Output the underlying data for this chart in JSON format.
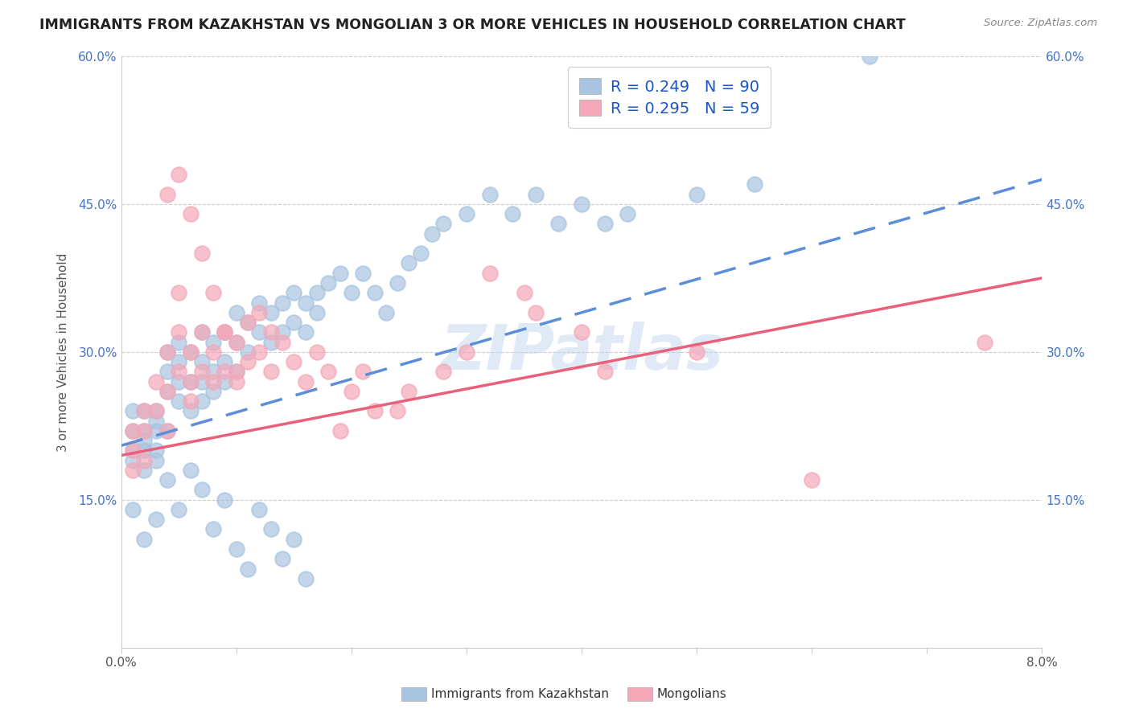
{
  "title": "IMMIGRANTS FROM KAZAKHSTAN VS MONGOLIAN 3 OR MORE VEHICLES IN HOUSEHOLD CORRELATION CHART",
  "source": "Source: ZipAtlas.com",
  "legend_label1": "Immigrants from Kazakhstan",
  "legend_label2": "Mongolians",
  "r1": 0.249,
  "n1": 90,
  "r2": 0.295,
  "n2": 59,
  "color1": "#a8c4e0",
  "color2": "#f4a8b8",
  "line1_color": "#5b8dd9",
  "line2_color": "#e8607a",
  "watermark": "ZIPatlas",
  "watermark_color": "#c8d8f0",
  "background_color": "#ffffff",
  "xmin": 0.0,
  "xmax": 0.08,
  "ymin": 0.0,
  "ymax": 0.6,
  "xticks": [
    0.0,
    0.01,
    0.02,
    0.03,
    0.04,
    0.05,
    0.06,
    0.07,
    0.08
  ],
  "yticks": [
    0.0,
    0.15,
    0.3,
    0.45,
    0.6
  ],
  "line1_x0": 0.0,
  "line1_y0": 0.205,
  "line1_x1": 0.08,
  "line1_y1": 0.475,
  "line2_x0": 0.0,
  "line2_y0": 0.195,
  "line2_x1": 0.08,
  "line2_y1": 0.375,
  "scatter1_x": [
    0.001,
    0.001,
    0.001,
    0.001,
    0.002,
    0.002,
    0.002,
    0.002,
    0.002,
    0.003,
    0.003,
    0.003,
    0.003,
    0.003,
    0.004,
    0.004,
    0.004,
    0.004,
    0.005,
    0.005,
    0.005,
    0.005,
    0.006,
    0.006,
    0.006,
    0.007,
    0.007,
    0.007,
    0.007,
    0.008,
    0.008,
    0.008,
    0.009,
    0.009,
    0.009,
    0.01,
    0.01,
    0.01,
    0.011,
    0.011,
    0.012,
    0.012,
    0.013,
    0.013,
    0.014,
    0.014,
    0.015,
    0.015,
    0.016,
    0.016,
    0.017,
    0.017,
    0.018,
    0.019,
    0.02,
    0.021,
    0.022,
    0.023,
    0.024,
    0.025,
    0.026,
    0.027,
    0.028,
    0.03,
    0.032,
    0.034,
    0.036,
    0.038,
    0.04,
    0.042,
    0.044,
    0.05,
    0.055,
    0.003,
    0.004,
    0.005,
    0.006,
    0.007,
    0.008,
    0.009,
    0.01,
    0.011,
    0.012,
    0.013,
    0.014,
    0.015,
    0.016,
    0.001,
    0.002,
    0.065
  ],
  "scatter1_y": [
    0.22,
    0.24,
    0.2,
    0.19,
    0.24,
    0.2,
    0.22,
    0.18,
    0.21,
    0.24,
    0.22,
    0.2,
    0.23,
    0.19,
    0.28,
    0.3,
    0.26,
    0.22,
    0.29,
    0.27,
    0.25,
    0.31,
    0.3,
    0.27,
    0.24,
    0.32,
    0.29,
    0.27,
    0.25,
    0.31,
    0.28,
    0.26,
    0.32,
    0.29,
    0.27,
    0.34,
    0.31,
    0.28,
    0.33,
    0.3,
    0.35,
    0.32,
    0.34,
    0.31,
    0.35,
    0.32,
    0.36,
    0.33,
    0.35,
    0.32,
    0.36,
    0.34,
    0.37,
    0.38,
    0.36,
    0.38,
    0.36,
    0.34,
    0.37,
    0.39,
    0.4,
    0.42,
    0.43,
    0.44,
    0.46,
    0.44,
    0.46,
    0.43,
    0.45,
    0.43,
    0.44,
    0.46,
    0.47,
    0.13,
    0.17,
    0.14,
    0.18,
    0.16,
    0.12,
    0.15,
    0.1,
    0.08,
    0.14,
    0.12,
    0.09,
    0.11,
    0.07,
    0.14,
    0.11,
    0.6
  ],
  "scatter2_x": [
    0.001,
    0.001,
    0.001,
    0.002,
    0.002,
    0.002,
    0.003,
    0.003,
    0.004,
    0.004,
    0.004,
    0.005,
    0.005,
    0.005,
    0.006,
    0.006,
    0.006,
    0.007,
    0.007,
    0.008,
    0.008,
    0.009,
    0.009,
    0.01,
    0.01,
    0.011,
    0.011,
    0.012,
    0.012,
    0.013,
    0.013,
    0.014,
    0.015,
    0.016,
    0.017,
    0.018,
    0.019,
    0.02,
    0.021,
    0.022,
    0.024,
    0.025,
    0.028,
    0.03,
    0.032,
    0.035,
    0.036,
    0.04,
    0.042,
    0.05,
    0.004,
    0.005,
    0.006,
    0.007,
    0.008,
    0.009,
    0.01,
    0.075,
    0.06
  ],
  "scatter2_y": [
    0.22,
    0.2,
    0.18,
    0.24,
    0.22,
    0.19,
    0.27,
    0.24,
    0.3,
    0.26,
    0.22,
    0.28,
    0.32,
    0.36,
    0.3,
    0.27,
    0.25,
    0.32,
    0.28,
    0.3,
    0.27,
    0.32,
    0.28,
    0.31,
    0.27,
    0.33,
    0.29,
    0.34,
    0.3,
    0.32,
    0.28,
    0.31,
    0.29,
    0.27,
    0.3,
    0.28,
    0.22,
    0.26,
    0.28,
    0.24,
    0.24,
    0.26,
    0.28,
    0.3,
    0.38,
    0.36,
    0.34,
    0.32,
    0.28,
    0.3,
    0.46,
    0.48,
    0.44,
    0.4,
    0.36,
    0.32,
    0.28,
    0.31,
    0.17
  ]
}
